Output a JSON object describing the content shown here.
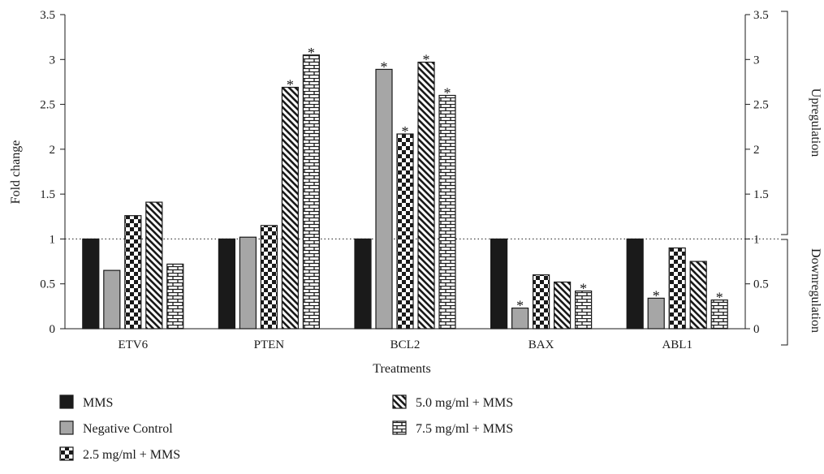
{
  "chart_data": {
    "type": "bar",
    "xlabel": "Treatments",
    "ylabel": "Fold change",
    "ylim": [
      0,
      3.5
    ],
    "yticks": [
      "0",
      "0.5",
      "1",
      "1.5",
      "2",
      "2.5",
      "3",
      "3.5"
    ],
    "reference_line": 1,
    "categories": [
      "ETV6",
      "PTEN",
      "BCL2",
      "BAX",
      "ABL1"
    ],
    "series": [
      {
        "name": "MMS",
        "pattern": "solid",
        "values": [
          1.0,
          1.0,
          1.0,
          1.0,
          1.0
        ]
      },
      {
        "name": "Negative Control",
        "pattern": "gray",
        "values": [
          0.65,
          1.02,
          2.89,
          0.23,
          0.34
        ]
      },
      {
        "name": "2.5 mg/ml + MMS",
        "pattern": "checker",
        "values": [
          1.26,
          1.15,
          2.17,
          0.6,
          0.9
        ]
      },
      {
        "name": "5.0 mg/ml + MMS",
        "pattern": "diagonal",
        "values": [
          1.41,
          2.69,
          2.97,
          0.52,
          0.75
        ]
      },
      {
        "name": "7.5 mg/ml + MMS",
        "pattern": "brick",
        "values": [
          0.72,
          3.05,
          2.6,
          0.42,
          0.32
        ]
      }
    ],
    "significance": [
      [
        false,
        false,
        false,
        false,
        false
      ],
      [
        false,
        false,
        true,
        true,
        true
      ],
      [
        false,
        false,
        true,
        false,
        false
      ],
      [
        false,
        true,
        true,
        false,
        false
      ],
      [
        false,
        true,
        true,
        true,
        true
      ]
    ],
    "significance_marker": "*",
    "right_annotations": {
      "upper": "Upregulation",
      "lower": "Downregulation"
    },
    "colors": {
      "solid": "#1a1a1a",
      "gray": "#a6a6a6",
      "ink": "#1a1a1a"
    }
  }
}
